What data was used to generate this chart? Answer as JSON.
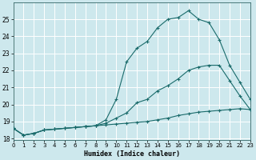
{
  "xlabel": "Humidex (Indice chaleur)",
  "bg_color": "#cde8ed",
  "grid_color": "#ffffff",
  "line_color": "#1a6b6b",
  "line1_x": [
    0,
    1,
    2,
    3,
    4,
    5,
    6,
    7,
    8,
    9,
    10,
    11,
    12,
    13,
    14,
    15,
    16,
    17,
    18,
    19,
    20,
    21,
    22,
    23
  ],
  "line1_y": [
    18.6,
    18.2,
    18.3,
    18.5,
    18.55,
    18.6,
    18.65,
    18.7,
    18.75,
    19.1,
    20.3,
    22.5,
    23.3,
    23.7,
    24.5,
    25.0,
    25.1,
    25.5,
    25.0,
    24.8,
    23.8,
    22.3,
    21.3,
    20.3
  ],
  "line2_x": [
    0,
    1,
    2,
    3,
    4,
    5,
    6,
    7,
    8,
    9,
    10,
    11,
    12,
    13,
    14,
    15,
    16,
    17,
    18,
    19,
    20,
    21,
    22,
    23
  ],
  "line2_y": [
    18.6,
    18.2,
    18.3,
    18.5,
    18.55,
    18.6,
    18.65,
    18.7,
    18.75,
    18.9,
    19.2,
    19.5,
    20.1,
    20.3,
    20.8,
    21.1,
    21.5,
    22.0,
    22.2,
    22.3,
    22.3,
    21.4,
    20.5,
    19.7
  ],
  "line3_x": [
    0,
    1,
    2,
    3,
    4,
    5,
    6,
    7,
    8,
    9,
    10,
    11,
    12,
    13,
    14,
    15,
    16,
    17,
    18,
    19,
    20,
    21,
    22,
    23
  ],
  "line3_y": [
    18.6,
    18.2,
    18.3,
    18.5,
    18.55,
    18.6,
    18.65,
    18.7,
    18.75,
    18.8,
    18.85,
    18.9,
    18.95,
    19.0,
    19.1,
    19.2,
    19.35,
    19.45,
    19.55,
    19.6,
    19.65,
    19.7,
    19.75,
    19.7
  ],
  "xlim": [
    0,
    23
  ],
  "ylim": [
    17.9,
    26.0
  ],
  "yticks": [
    18,
    19,
    20,
    21,
    22,
    23,
    24,
    25
  ],
  "xticks": [
    0,
    1,
    2,
    3,
    4,
    5,
    6,
    7,
    8,
    9,
    10,
    11,
    12,
    13,
    14,
    15,
    16,
    17,
    18,
    19,
    20,
    21,
    22,
    23
  ]
}
